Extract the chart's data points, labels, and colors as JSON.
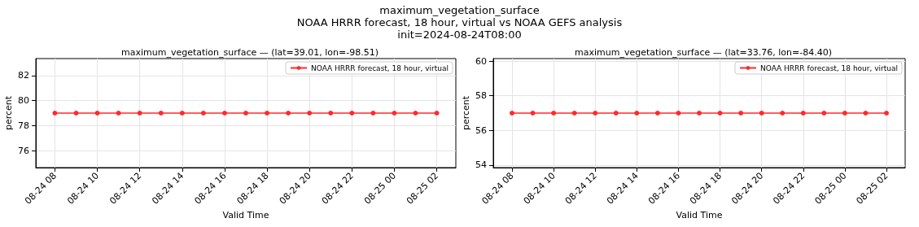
{
  "chart_data": [
    {
      "type": "line",
      "title": "maximum_vegetation_surface — (lat=39.01, lon=-98.51)",
      "annotations": [
        "maximum_vegetation_surface",
        "NOAA HRRR forecast, 18 hour, virtual vs NOAA GEFS analysis",
        "init=2024-08-24T08:00"
      ],
      "xlabel": "Valid Time",
      "ylabel": "percent",
      "x": [
        "2024-08-24T08:00",
        "2024-08-24T09:00",
        "2024-08-24T10:00",
        "2024-08-24T11:00",
        "2024-08-24T12:00",
        "2024-08-24T13:00",
        "2024-08-24T14:00",
        "2024-08-24T15:00",
        "2024-08-24T16:00",
        "2024-08-24T17:00",
        "2024-08-24T18:00",
        "2024-08-24T19:00",
        "2024-08-24T20:00",
        "2024-08-24T21:00",
        "2024-08-24T22:00",
        "2024-08-24T23:00",
        "2024-08-25T00:00",
        "2024-08-25T01:00",
        "2024-08-25T02:00"
      ],
      "series": [
        {
          "name": "NOAA HRRR forecast, 18 hour, virtual",
          "color": "#ff2a2a",
          "values": [
            79,
            79,
            79,
            79,
            79,
            79,
            79,
            79,
            79,
            79,
            79,
            79,
            79,
            79,
            79,
            79,
            79,
            79,
            79
          ]
        }
      ],
      "xlim": [
        "2024-08-24T07:06",
        "2024-08-25T02:54"
      ],
      "xticks": [
        {
          "value": "2024-08-24T08:00",
          "label": "08-24 08"
        },
        {
          "value": "2024-08-24T10:00",
          "label": "08-24 10"
        },
        {
          "value": "2024-08-24T12:00",
          "label": "08-24 12"
        },
        {
          "value": "2024-08-24T14:00",
          "label": "08-24 14"
        },
        {
          "value": "2024-08-24T16:00",
          "label": "08-24 16"
        },
        {
          "value": "2024-08-24T18:00",
          "label": "08-24 18"
        },
        {
          "value": "2024-08-24T20:00",
          "label": "08-24 20"
        },
        {
          "value": "2024-08-24T22:00",
          "label": "08-24 22"
        },
        {
          "value": "2024-08-25T00:00",
          "label": "08-25 00"
        },
        {
          "value": "2024-08-25T02:00",
          "label": "08-25 02"
        }
      ],
      "ylim": [
        74.65,
        83.35
      ],
      "yticks": [
        76,
        78,
        80,
        82
      ],
      "grid": true,
      "legend": "top right",
      "marker": "circle",
      "line_style": "solid"
    },
    {
      "type": "line",
      "title": "maximum_vegetation_surface — (lat=33.76, lon=-84.40)",
      "xlabel": "Valid Time",
      "ylabel": "percent",
      "x": [
        "2024-08-24T08:00",
        "2024-08-24T09:00",
        "2024-08-24T10:00",
        "2024-08-24T11:00",
        "2024-08-24T12:00",
        "2024-08-24T13:00",
        "2024-08-24T14:00",
        "2024-08-24T15:00",
        "2024-08-24T16:00",
        "2024-08-24T17:00",
        "2024-08-24T18:00",
        "2024-08-24T19:00",
        "2024-08-24T20:00",
        "2024-08-24T21:00",
        "2024-08-24T22:00",
        "2024-08-24T23:00",
        "2024-08-25T00:00",
        "2024-08-25T01:00",
        "2024-08-25T02:00"
      ],
      "series": [
        {
          "name": "NOAA HRRR forecast, 18 hour, virtual",
          "color": "#ff2a2a",
          "values": [
            57,
            57,
            57,
            57,
            57,
            57,
            57,
            57,
            57,
            57,
            57,
            57,
            57,
            57,
            57,
            57,
            57,
            57,
            57
          ]
        }
      ],
      "xlim": [
        "2024-08-24T07:06",
        "2024-08-25T02:54"
      ],
      "xticks": [
        {
          "value": "2024-08-24T08:00",
          "label": "08-24 08"
        },
        {
          "value": "2024-08-24T10:00",
          "label": "08-24 10"
        },
        {
          "value": "2024-08-24T12:00",
          "label": "08-24 12"
        },
        {
          "value": "2024-08-24T14:00",
          "label": "08-24 14"
        },
        {
          "value": "2024-08-24T16:00",
          "label": "08-24 16"
        },
        {
          "value": "2024-08-24T18:00",
          "label": "08-24 18"
        },
        {
          "value": "2024-08-24T20:00",
          "label": "08-24 20"
        },
        {
          "value": "2024-08-24T22:00",
          "label": "08-24 22"
        },
        {
          "value": "2024-08-25T00:00",
          "label": "08-25 00"
        },
        {
          "value": "2024-08-25T02:00",
          "label": "08-25 02"
        }
      ],
      "ylim": [
        53.85,
        60.15
      ],
      "yticks": [
        54,
        56,
        58,
        60
      ],
      "grid": true,
      "legend": "top right",
      "marker": "circle",
      "line_style": "solid"
    }
  ]
}
